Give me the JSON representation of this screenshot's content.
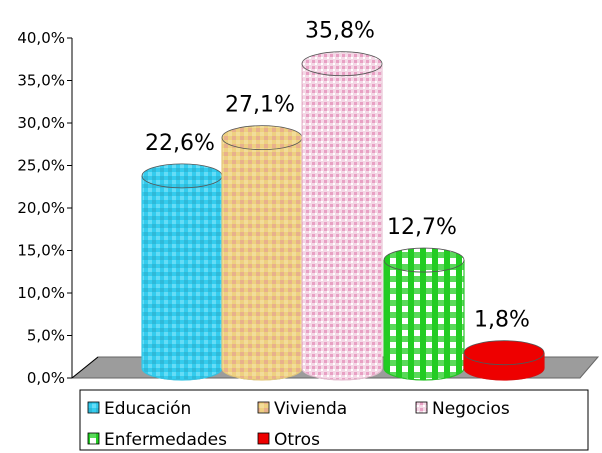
{
  "chart_data": {
    "type": "bar",
    "style": "3d-cylinder",
    "categories": [
      "Educación",
      "Vivienda",
      "Negocios",
      "Enfermedades",
      "Otros"
    ],
    "values": [
      22.6,
      27.1,
      35.8,
      12.7,
      1.8
    ],
    "data_labels": [
      "22,6%",
      "27,1%",
      "35,8%",
      "12,7%",
      "1,8%"
    ],
    "colors": [
      "#33ccee",
      "#eed080",
      "#f2c8dc",
      "#22cc22",
      "#ee0000"
    ],
    "ylim": [
      0,
      40
    ],
    "y_ticks": [
      0,
      5,
      10,
      15,
      20,
      25,
      30,
      35,
      40
    ],
    "y_tick_labels": [
      "0,0%",
      "5,0%",
      "10,0%",
      "15,0%",
      "20,0%",
      "25,0%",
      "30,0%",
      "35,0%",
      "40,0%"
    ],
    "grid": false,
    "legend_position": "bottom",
    "title": "",
    "xlabel": "",
    "ylabel": ""
  }
}
